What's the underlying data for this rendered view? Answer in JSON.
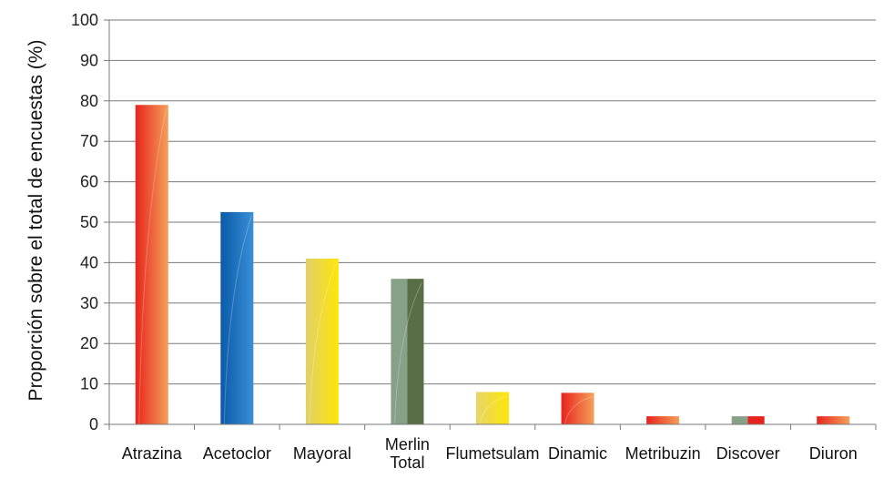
{
  "chart_data": {
    "type": "bar",
    "categories": [
      [
        "Atrazina"
      ],
      [
        "Acetoclor"
      ],
      [
        "Mayoral"
      ],
      [
        "Merlin",
        "Total"
      ],
      [
        "Flumetsulam"
      ],
      [
        "Dinamic"
      ],
      [
        "Metribuzin"
      ],
      [
        "Discover"
      ],
      [
        "Diuron"
      ]
    ],
    "values": [
      79,
      52.5,
      41,
      36,
      8,
      7.8,
      2,
      2,
      2
    ],
    "bar_colors": [
      [
        "#e8231d",
        "#f5a05a"
      ],
      [
        "#0a5aa8",
        "#3a8fd6"
      ],
      [
        "#e2cf6a",
        "#fde607"
      ],
      [
        "#87a088",
        "#5a6e45"
      ],
      [
        "#e8d56a",
        "#fde607"
      ],
      [
        "#e8231d",
        "#f5a05a"
      ],
      [
        "#e8231d",
        "#f5a05a"
      ],
      [
        "#87a088",
        "#e8231d"
      ],
      [
        "#e8231d",
        "#f5a05a"
      ]
    ],
    "ylabel": "Proporción sobre el total de encuestas (%)",
    "xlabel": "",
    "title": "",
    "ylim": [
      0,
      100
    ],
    "yticks": [
      0,
      10,
      20,
      30,
      40,
      50,
      60,
      70,
      80,
      90,
      100
    ],
    "grid": true,
    "legend": "none"
  }
}
